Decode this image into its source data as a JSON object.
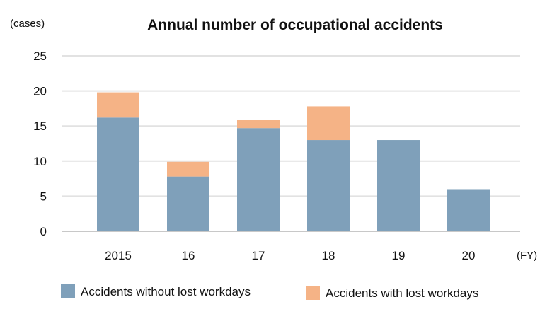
{
  "chart_data": {
    "type": "bar",
    "stacked": true,
    "title": "Annual number of occupational accidents",
    "y_unit": "(cases)",
    "x_unit": "(FY)",
    "categories": [
      "2015",
      "16",
      "17",
      "18",
      "19",
      "20"
    ],
    "series": [
      {
        "name": "Accidents without lost workdays",
        "color": "#7fa0ba",
        "values": [
          16.2,
          7.8,
          14.7,
          13.0,
          13.0,
          6.0
        ]
      },
      {
        "name": "Accidents with lost workdays",
        "color": "#f5b386",
        "values": [
          3.6,
          2.1,
          1.2,
          4.8,
          0,
          0
        ]
      }
    ],
    "ylim": [
      0,
      25
    ],
    "yticks": [
      "0",
      "5",
      "10",
      "15",
      "20",
      "25"
    ],
    "grid": true,
    "legend_position": "bottom"
  }
}
